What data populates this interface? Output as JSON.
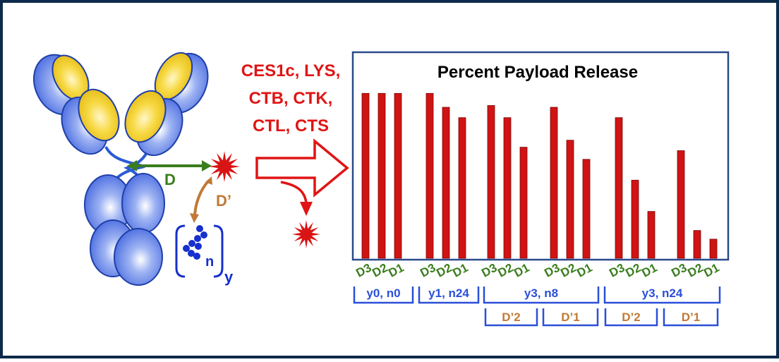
{
  "enzymes": {
    "line1": "CES1c, LYS,",
    "line2": "CTB, CTK,",
    "line3": "CTL, CTS"
  },
  "labels": {
    "d": "D",
    "d_prime": "D’",
    "n": "n",
    "y": "y"
  },
  "colors": {
    "frame": "#0d2a4a",
    "heavy_chain": "#4a6fe0",
    "light_chain": "#f2cc1e",
    "hinge": "#2a5bd6",
    "payload": "#d91414",
    "bar": "#d01313",
    "distance_d": "#3a7d1e",
    "distance_d_prime": "#c07a35",
    "polymer": "#1530cc",
    "group_bracket": "#2a4fd8",
    "sub_bracket": "#2a4fd8",
    "sub_bracket_text": "#c07a35"
  },
  "chart_data": {
    "type": "bar",
    "title": "Percent Payload Release",
    "ylim": [
      0,
      100
    ],
    "groups": [
      {
        "bars": [
          {
            "label": "D3",
            "value": 95
          },
          {
            "label": "D2",
            "value": 95
          },
          {
            "label": "D1",
            "value": 95
          }
        ]
      },
      {
        "bars": [
          {
            "label": "D3",
            "value": 95
          },
          {
            "label": "D2",
            "value": 87
          },
          {
            "label": "D1",
            "value": 81
          }
        ]
      },
      {
        "bars": [
          {
            "label": "D3",
            "value": 88
          },
          {
            "label": "D2",
            "value": 81
          },
          {
            "label": "D1",
            "value": 64
          }
        ]
      },
      {
        "bars": [
          {
            "label": "D3",
            "value": 87
          },
          {
            "label": "D2",
            "value": 68
          },
          {
            "label": "D1",
            "value": 57
          }
        ]
      },
      {
        "bars": [
          {
            "label": "D3",
            "value": 81
          },
          {
            "label": "D2",
            "value": 45
          },
          {
            "label": "D1",
            "value": 27
          }
        ]
      },
      {
        "bars": [
          {
            "label": "D3",
            "value": 62
          },
          {
            "label": "D2",
            "value": 16
          },
          {
            "label": "D1",
            "value": 11
          }
        ]
      }
    ],
    "group_labels": [
      "y0, n0",
      "y1, n24",
      "y3, n8",
      "y3, n24"
    ],
    "sub_labels": [
      "D’2",
      "D’1",
      "D’2",
      "D’1"
    ]
  }
}
